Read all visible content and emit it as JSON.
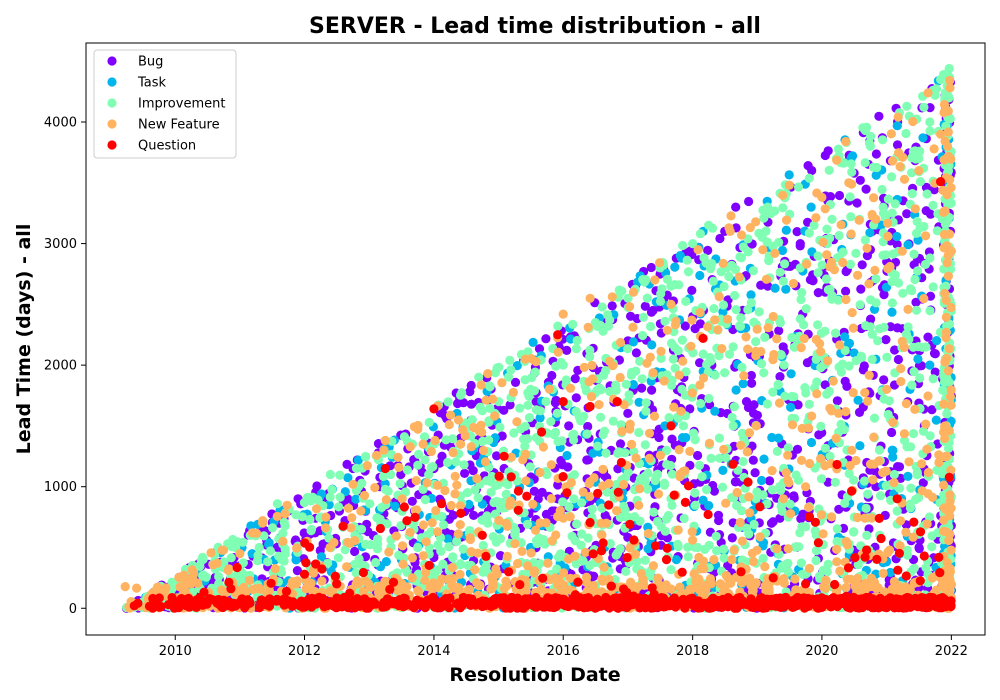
{
  "chart_data": {
    "type": "scatter",
    "title": "SERVER - Lead time distribution - all",
    "xlabel": "Resolution Date",
    "ylabel": "Lead Time (days) - all",
    "xlim": [
      "2008-08-15",
      "2022-07-10"
    ],
    "ylim": [
      -220,
      4650
    ],
    "xticks": [
      "2010",
      "2012",
      "2014",
      "2016",
      "2018",
      "2020",
      "2022"
    ],
    "yticks": [
      0,
      1000,
      2000,
      3000,
      4000
    ],
    "grid": false,
    "legend_position": "top-left",
    "series": [
      {
        "name": "Bug",
        "color": "#8000ff",
        "points": [
          [
            "2009-04-01",
            0
          ],
          [
            "2009-07-01",
            40
          ],
          [
            "2010-01-15",
            120
          ],
          [
            "2010-06-01",
            250
          ],
          [
            "2011-01-01",
            350
          ],
          [
            "2011-06-01",
            520
          ],
          [
            "2011-10-01",
            800
          ],
          [
            "2012-03-01",
            620
          ],
          [
            "2012-09-01",
            900
          ],
          [
            "2013-03-01",
            1000
          ],
          [
            "2013-09-01",
            880
          ],
          [
            "2014-01-01",
            1150
          ],
          [
            "2014-06-01",
            1400
          ],
          [
            "2014-10-01",
            1300
          ],
          [
            "2015-02-01",
            1150
          ],
          [
            "2015-08-01",
            1700
          ],
          [
            "2016-02-01",
            1500
          ],
          [
            "2016-08-01",
            1950
          ],
          [
            "2017-01-01",
            2200
          ],
          [
            "2017-07-01",
            2750
          ],
          [
            "2018-01-01",
            2400
          ],
          [
            "2018-07-01",
            3100
          ],
          [
            "2018-09-01",
            3300
          ],
          [
            "2019-03-01",
            2650
          ],
          [
            "2019-09-01",
            3000
          ],
          [
            "2020-03-01",
            2600
          ],
          [
            "2020-06-01",
            3350
          ],
          [
            "2020-07-01",
            3580
          ],
          [
            "2020-10-01",
            2950
          ],
          [
            "2021-01-01",
            2850
          ],
          [
            "2021-04-01",
            2300
          ],
          [
            "2021-08-01",
            1500
          ],
          [
            "2021-11-01",
            1200
          ],
          [
            "2021-12-15",
            650
          ],
          [
            "2019-01-01",
            900
          ],
          [
            "2017-04-01",
            1100
          ],
          [
            "2015-11-01",
            800
          ],
          [
            "2020-11-01",
            1000
          ],
          [
            "2018-11-01",
            1700
          ],
          [
            "2021-06-01",
            400
          ]
        ]
      },
      {
        "name": "Task",
        "color": "#00b5eb",
        "points": [
          [
            "2009-05-01",
            10
          ],
          [
            "2010-03-01",
            60
          ],
          [
            "2011-05-01",
            200
          ],
          [
            "2012-06-01",
            300
          ],
          [
            "2013-07-01",
            400
          ],
          [
            "2014-07-01",
            600
          ],
          [
            "2015-07-01",
            500
          ],
          [
            "2016-05-01",
            900
          ],
          [
            "2017-04-01",
            1200
          ],
          [
            "2018-03-01",
            3100
          ],
          [
            "2018-10-01",
            2300
          ],
          [
            "2019-05-01",
            1400
          ],
          [
            "2019-11-01",
            3300
          ],
          [
            "2020-07-01",
            2100
          ],
          [
            "2020-11-01",
            3150
          ],
          [
            "2021-05-01",
            2990
          ],
          [
            "2021-09-01",
            2000
          ],
          [
            "2021-10-20",
            4340
          ],
          [
            "2021-12-20",
            3210
          ],
          [
            "2019-08-01",
            800
          ],
          [
            "2016-11-01",
            1700
          ],
          [
            "2018-12-01",
            650
          ],
          [
            "2021-02-01",
            1300
          ],
          [
            "2017-10-01",
            400
          ]
        ]
      },
      {
        "name": "Improvement",
        "color": "#80ffb4",
        "points": [
          [
            "2009-06-01",
            30
          ],
          [
            "2010-02-01",
            200
          ],
          [
            "2010-09-01",
            350
          ],
          [
            "2011-03-01",
            600
          ],
          [
            "2011-08-01",
            860
          ],
          [
            "2012-04-01",
            750
          ],
          [
            "2012-11-01",
            1000
          ],
          [
            "2013-05-01",
            1100
          ],
          [
            "2014-01-01",
            1350
          ],
          [
            "2014-08-01",
            1500
          ],
          [
            "2015-01-01",
            1700
          ],
          [
            "2015-07-01",
            1800
          ],
          [
            "2016-01-01",
            2000
          ],
          [
            "2016-07-01",
            2350
          ],
          [
            "2017-01-01",
            2550
          ],
          [
            "2017-07-01",
            2800
          ],
          [
            "2018-01-01",
            3000
          ],
          [
            "2018-04-01",
            3150
          ],
          [
            "2018-10-01",
            2700
          ],
          [
            "2019-03-01",
            3300
          ],
          [
            "2019-09-01",
            2800
          ],
          [
            "2020-02-01",
            3000
          ],
          [
            "2020-08-01",
            3200
          ],
          [
            "2020-10-01",
            3800
          ],
          [
            "2021-02-01",
            3250
          ],
          [
            "2021-07-01",
            3700
          ],
          [
            "2021-09-01",
            4000
          ],
          [
            "2021-11-01",
            4350
          ],
          [
            "2021-12-20",
            4440
          ],
          [
            "2021-10-01",
            4220
          ],
          [
            "2017-11-01",
            1800
          ],
          [
            "2019-06-01",
            2000
          ],
          [
            "2020-05-01",
            1200
          ],
          [
            "2016-03-01",
            900
          ],
          [
            "2014-11-01",
            700
          ],
          [
            "2018-06-01",
            1400
          ],
          [
            "2021-03-01",
            800
          ],
          [
            "2019-12-01",
            600
          ],
          [
            "2015-10-01",
            1100
          ],
          [
            "2013-10-01",
            500
          ]
        ]
      },
      {
        "name": "New Feature",
        "color": "#ffb360",
        "points": [
          [
            "2009-08-01",
            80
          ],
          [
            "2010-04-01",
            200
          ],
          [
            "2011-01-01",
            450
          ],
          [
            "2011-09-01",
            550
          ],
          [
            "2012-05-01",
            750
          ],
          [
            "2012-10-01",
            1020
          ],
          [
            "2013-04-01",
            1380
          ],
          [
            "2013-11-01",
            1350
          ],
          [
            "2014-06-01",
            1350
          ],
          [
            "2014-11-01",
            1930
          ],
          [
            "2015-06-01",
            2050
          ],
          [
            "2016-01-01",
            2420
          ],
          [
            "2016-06-01",
            2550
          ],
          [
            "2017-02-01",
            2600
          ],
          [
            "2017-06-01",
            2700
          ],
          [
            "2018-02-01",
            2950
          ],
          [
            "2018-08-01",
            3100
          ],
          [
            "2019-02-01",
            2950
          ],
          [
            "2019-07-01",
            3480
          ],
          [
            "2020-01-01",
            3380
          ],
          [
            "2020-06-01",
            3500
          ],
          [
            "2020-11-01",
            3200
          ],
          [
            "2021-04-01",
            3710
          ],
          [
            "2021-07-01",
            3600
          ],
          [
            "2021-11-01",
            3900
          ],
          [
            "2021-12-15",
            4090
          ],
          [
            "2021-12-10",
            3800
          ],
          [
            "2017-09-01",
            1500
          ],
          [
            "2019-10-01",
            1000
          ],
          [
            "2016-09-01",
            700
          ],
          [
            "2018-05-01",
            400
          ],
          [
            "2020-09-01",
            200
          ],
          [
            "2015-03-01",
            300
          ],
          [
            "2021-01-01",
            1800
          ],
          [
            "2013-09-01",
            250
          ],
          [
            "2019-04-01",
            2400
          ]
        ]
      },
      {
        "name": "Question",
        "color": "#ff0000",
        "points": [
          [
            "2009-05-15",
            20
          ],
          [
            "2010-01-01",
            30
          ],
          [
            "2011-01-01",
            50
          ],
          [
            "2012-01-01",
            280
          ],
          [
            "2012-07-01",
            200
          ],
          [
            "2013-04-01",
            1150
          ],
          [
            "2013-08-01",
            720
          ],
          [
            "2014-01-01",
            1640
          ],
          [
            "2014-06-01",
            780
          ],
          [
            "2014-10-01",
            600
          ],
          [
            "2015-02-01",
            1250
          ],
          [
            "2015-09-01",
            1450
          ],
          [
            "2015-12-01",
            2250
          ],
          [
            "2016-01-01",
            1700
          ],
          [
            "2016-06-01",
            1660
          ],
          [
            "2016-11-01",
            1700
          ],
          [
            "2017-09-01",
            1500
          ],
          [
            "2018-03-01",
            2220
          ],
          [
            "2019-04-01",
            250
          ],
          [
            "2020-09-01",
            420
          ],
          [
            "2021-11-01",
            3510
          ],
          [
            "2021-08-01",
            430
          ],
          [
            "2018-10-01",
            300
          ],
          [
            "2017-02-01",
            100
          ],
          [
            "2019-10-01",
            200
          ],
          [
            "2020-03-01",
            80
          ],
          [
            "2016-03-01",
            50
          ],
          [
            "2018-06-01",
            30
          ]
        ]
      }
    ]
  }
}
